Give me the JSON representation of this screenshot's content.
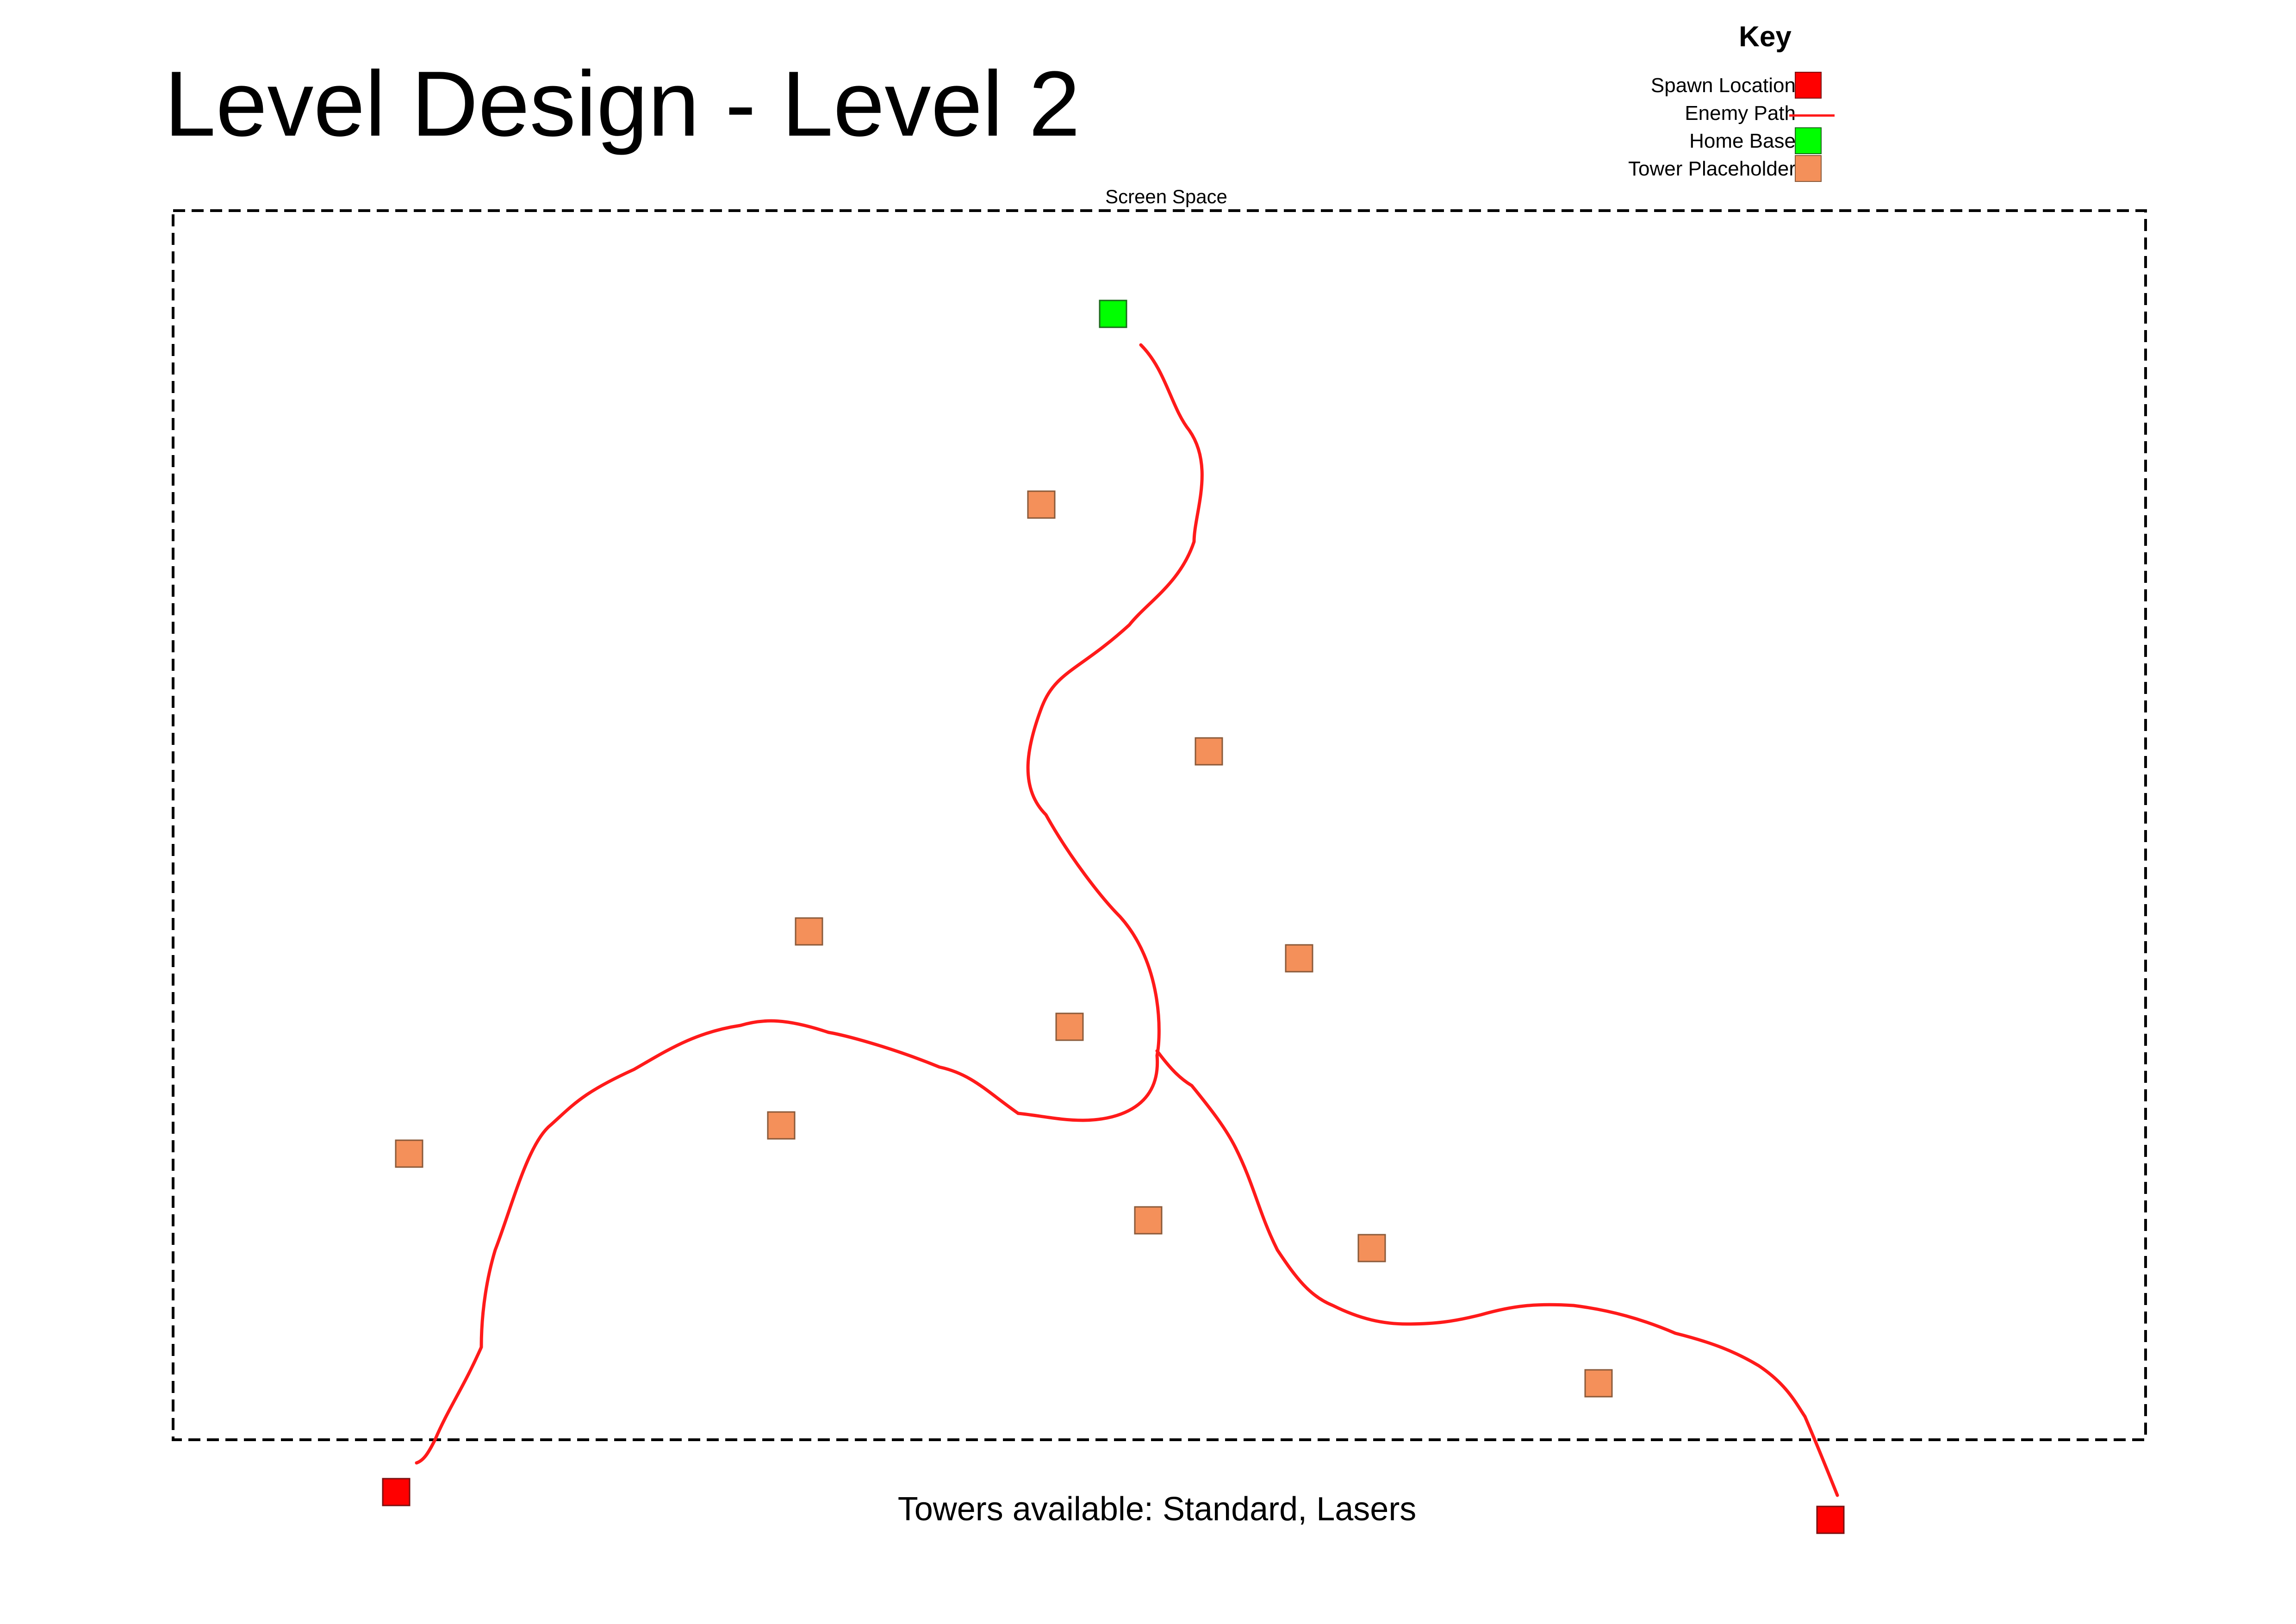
{
  "title": "Level Design - Level 2",
  "key": {
    "heading": "Key",
    "items": [
      {
        "label": "Spawn Location",
        "icon": "spawn-square-icon",
        "color": "#ff0000"
      },
      {
        "label": "Enemy Path",
        "icon": "path-line-icon",
        "color": "#ff0000"
      },
      {
        "label": "Home Base",
        "icon": "home-base-square-icon",
        "color": "#00ff00"
      },
      {
        "label": "Tower Placeholder",
        "icon": "tower-square-icon",
        "color": "#f4905a"
      }
    ]
  },
  "screen_space": {
    "label": "Screen Space"
  },
  "map": {
    "home_base_count": 1,
    "spawn_count": 2,
    "tower_placeholder_count": 10,
    "enemy_path_count": 3,
    "colors": {
      "spawn": "#ff0000",
      "path": "#ff1a1a",
      "home": "#00ff00",
      "tower": "#f4905a",
      "border": "#000000"
    }
  },
  "footer": {
    "towers_available": "Towers available: Standard, Lasers"
  }
}
